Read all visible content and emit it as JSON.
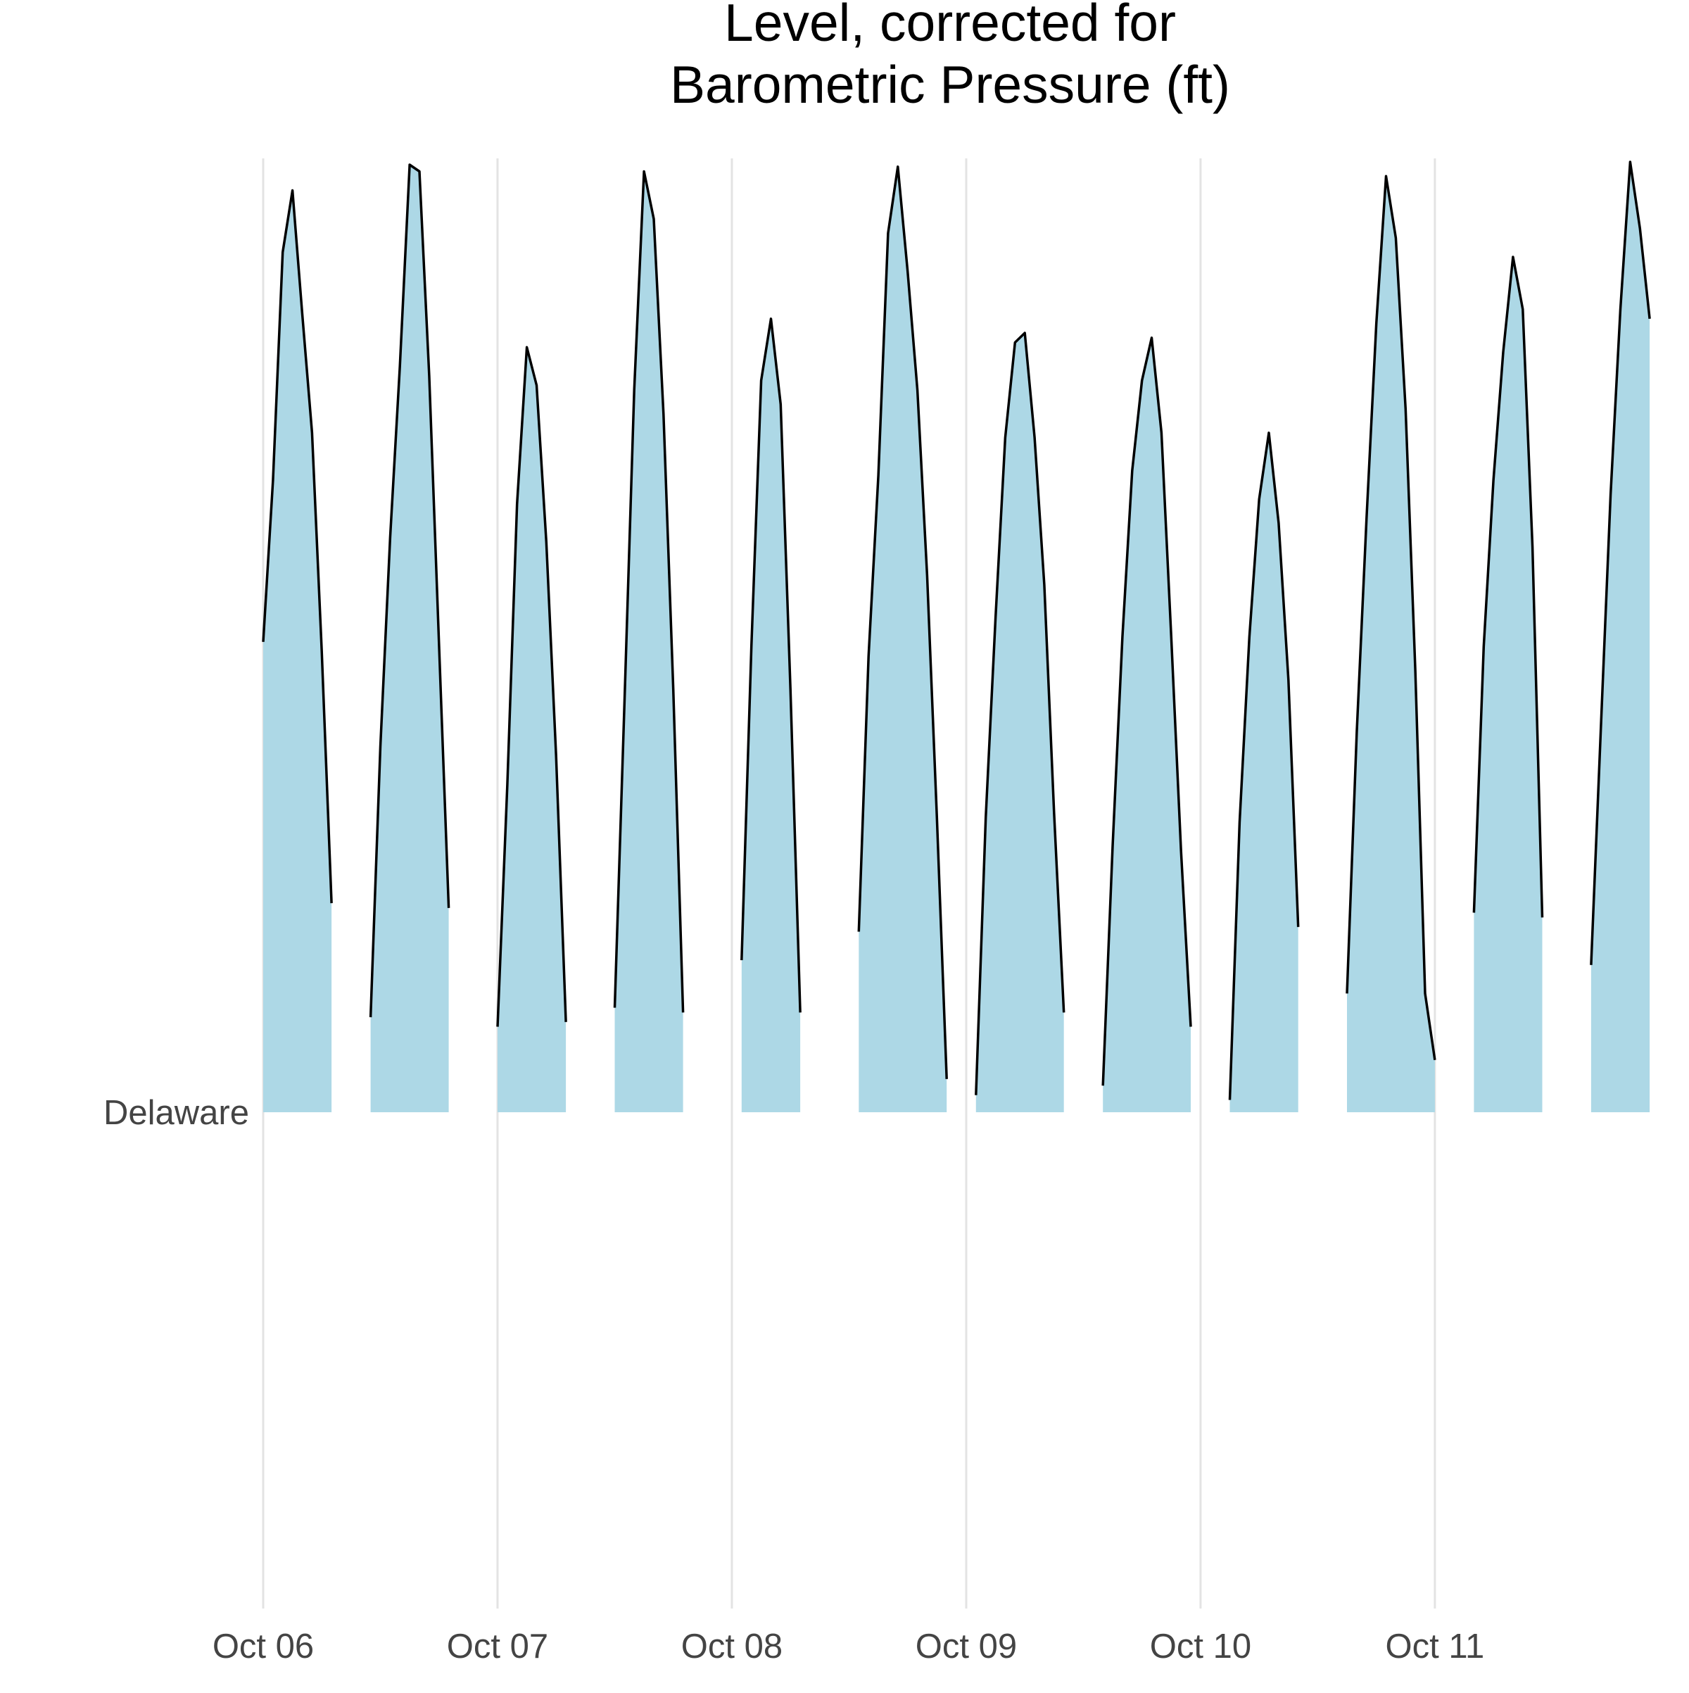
{
  "chart_data": {
    "type": "area",
    "title_lines": [
      "Level, corrected for",
      "Barometric Pressure (ft)"
    ],
    "xlabel": "",
    "ylabel": "",
    "x_ticks": [
      {
        "value": "2019-10-06",
        "label": "Oct 06"
      },
      {
        "value": "2019-10-07",
        "label": "Oct 07"
      },
      {
        "value": "2019-10-08",
        "label": "Oct 08"
      },
      {
        "value": "2019-10-09",
        "label": "Oct 09"
      },
      {
        "value": "2019-10-10",
        "label": "Oct 10"
      },
      {
        "value": "2019-10-11",
        "label": "Oct 11"
      }
    ],
    "xlim": [
      "2019-10-06T00:00",
      "2019-10-11T23:00"
    ],
    "y_categories": [
      "Delaware"
    ],
    "ridge_scale": [
      0,
      1
    ],
    "fill_color": "#add8e6",
    "line_color": "#000000",
    "grid": "vertical-major",
    "series": [
      {
        "name": "Delaware",
        "segments": [
          [
            {
              "x": "2019-10-06T00:00",
              "y": 0.495
            },
            {
              "x": "2019-10-06T01:00",
              "y": 0.665
            },
            {
              "x": "2019-10-06T02:00",
              "y": 0.905
            },
            {
              "x": "2019-10-06T03:00",
              "y": 0.97
            },
            {
              "x": "2019-10-06T04:00",
              "y": 0.84
            },
            {
              "x": "2019-10-06T05:00",
              "y": 0.715
            },
            {
              "x": "2019-10-06T06:00",
              "y": 0.485
            },
            {
              "x": "2019-10-06T07:00",
              "y": 0.22
            }
          ],
          [
            {
              "x": "2019-10-06T11:00",
              "y": 0.1
            },
            {
              "x": "2019-10-06T12:00",
              "y": 0.385
            },
            {
              "x": "2019-10-06T13:00",
              "y": 0.605
            },
            {
              "x": "2019-10-06T14:00",
              "y": 0.785
            },
            {
              "x": "2019-10-06T15:00",
              "y": 0.997
            },
            {
              "x": "2019-10-06T16:00",
              "y": 0.99
            },
            {
              "x": "2019-10-06T17:00",
              "y": 0.775
            },
            {
              "x": "2019-10-06T18:00",
              "y": 0.495
            },
            {
              "x": "2019-10-06T19:00",
              "y": 0.215
            }
          ],
          [
            {
              "x": "2019-10-07T00:00",
              "y": 0.09
            },
            {
              "x": "2019-10-07T01:00",
              "y": 0.345
            },
            {
              "x": "2019-10-07T02:00",
              "y": 0.64
            },
            {
              "x": "2019-10-07T03:00",
              "y": 0.805
            },
            {
              "x": "2019-10-07T04:00",
              "y": 0.765
            },
            {
              "x": "2019-10-07T05:00",
              "y": 0.6
            },
            {
              "x": "2019-10-07T06:00",
              "y": 0.375
            },
            {
              "x": "2019-10-07T07:00",
              "y": 0.095
            }
          ],
          [
            {
              "x": "2019-10-07T12:00",
              "y": 0.11
            },
            {
              "x": "2019-10-07T13:00",
              "y": 0.43
            },
            {
              "x": "2019-10-07T14:00",
              "y": 0.76
            },
            {
              "x": "2019-10-07T15:00",
              "y": 0.99
            },
            {
              "x": "2019-10-07T16:00",
              "y": 0.94
            },
            {
              "x": "2019-10-07T17:00",
              "y": 0.735
            },
            {
              "x": "2019-10-07T18:00",
              "y": 0.445
            },
            {
              "x": "2019-10-07T19:00",
              "y": 0.105
            }
          ],
          [
            {
              "x": "2019-10-08T01:00",
              "y": 0.16
            },
            {
              "x": "2019-10-08T02:00",
              "y": 0.49
            },
            {
              "x": "2019-10-08T03:00",
              "y": 0.77
            },
            {
              "x": "2019-10-08T04:00",
              "y": 0.835
            },
            {
              "x": "2019-10-08T05:00",
              "y": 0.745
            },
            {
              "x": "2019-10-08T06:00",
              "y": 0.445
            },
            {
              "x": "2019-10-08T07:00",
              "y": 0.105
            }
          ],
          [
            {
              "x": "2019-10-08T13:00",
              "y": 0.19
            },
            {
              "x": "2019-10-08T14:00",
              "y": 0.48
            },
            {
              "x": "2019-10-08T15:00",
              "y": 0.67
            },
            {
              "x": "2019-10-08T16:00",
              "y": 0.925
            },
            {
              "x": "2019-10-08T17:00",
              "y": 0.995
            },
            {
              "x": "2019-10-08T18:00",
              "y": 0.885
            },
            {
              "x": "2019-10-08T19:00",
              "y": 0.76
            },
            {
              "x": "2019-10-08T20:00",
              "y": 0.565
            },
            {
              "x": "2019-10-08T21:00",
              "y": 0.31
            },
            {
              "x": "2019-10-08T22:00",
              "y": 0.035
            }
          ],
          [
            {
              "x": "2019-10-09T01:00",
              "y": 0.018
            },
            {
              "x": "2019-10-09T02:00",
              "y": 0.31
            },
            {
              "x": "2019-10-09T03:00",
              "y": 0.52
            },
            {
              "x": "2019-10-09T04:00",
              "y": 0.71
            },
            {
              "x": "2019-10-09T05:00",
              "y": 0.81
            },
            {
              "x": "2019-10-09T06:00",
              "y": 0.82
            },
            {
              "x": "2019-10-09T07:00",
              "y": 0.71
            },
            {
              "x": "2019-10-09T08:00",
              "y": 0.555
            },
            {
              "x": "2019-10-09T09:00",
              "y": 0.315
            },
            {
              "x": "2019-10-09T10:00",
              "y": 0.105
            }
          ],
          [
            {
              "x": "2019-10-09T14:00",
              "y": 0.028
            },
            {
              "x": "2019-10-09T15:00",
              "y": 0.28
            },
            {
              "x": "2019-10-09T16:00",
              "y": 0.5
            },
            {
              "x": "2019-10-09T17:00",
              "y": 0.675
            },
            {
              "x": "2019-10-09T18:00",
              "y": 0.77
            },
            {
              "x": "2019-10-09T19:00",
              "y": 0.815
            },
            {
              "x": "2019-10-09T20:00",
              "y": 0.715
            },
            {
              "x": "2019-10-09T21:00",
              "y": 0.5
            },
            {
              "x": "2019-10-09T22:00",
              "y": 0.275
            },
            {
              "x": "2019-10-09T23:00",
              "y": 0.09
            }
          ],
          [
            {
              "x": "2019-10-10T03:00",
              "y": 0.013
            },
            {
              "x": "2019-10-10T04:00",
              "y": 0.305
            },
            {
              "x": "2019-10-10T05:00",
              "y": 0.5
            },
            {
              "x": "2019-10-10T06:00",
              "y": 0.645
            },
            {
              "x": "2019-10-10T07:00",
              "y": 0.715
            },
            {
              "x": "2019-10-10T08:00",
              "y": 0.62
            },
            {
              "x": "2019-10-10T09:00",
              "y": 0.455
            },
            {
              "x": "2019-10-10T10:00",
              "y": 0.195
            }
          ],
          [
            {
              "x": "2019-10-10T15:00",
              "y": 0.125
            },
            {
              "x": "2019-10-10T16:00",
              "y": 0.4
            },
            {
              "x": "2019-10-10T17:00",
              "y": 0.625
            },
            {
              "x": "2019-10-10T18:00",
              "y": 0.83
            },
            {
              "x": "2019-10-10T19:00",
              "y": 0.985
            },
            {
              "x": "2019-10-10T20:00",
              "y": 0.92
            },
            {
              "x": "2019-10-10T21:00",
              "y": 0.74
            },
            {
              "x": "2019-10-10T22:00",
              "y": 0.465
            },
            {
              "x": "2019-10-10T23:00",
              "y": 0.125
            },
            {
              "x": "2019-10-11T00:00",
              "y": 0.055
            }
          ],
          [
            {
              "x": "2019-10-11T04:00",
              "y": 0.21
            },
            {
              "x": "2019-10-11T05:00",
              "y": 0.49
            },
            {
              "x": "2019-10-11T06:00",
              "y": 0.665
            },
            {
              "x": "2019-10-11T07:00",
              "y": 0.8
            },
            {
              "x": "2019-10-11T08:00",
              "y": 0.9
            },
            {
              "x": "2019-10-11T09:00",
              "y": 0.845
            },
            {
              "x": "2019-10-11T10:00",
              "y": 0.595
            },
            {
              "x": "2019-10-11T11:00",
              "y": 0.205
            }
          ],
          [
            {
              "x": "2019-10-11T16:00",
              "y": 0.155
            },
            {
              "x": "2019-10-11T17:00",
              "y": 0.405
            },
            {
              "x": "2019-10-11T18:00",
              "y": 0.65
            },
            {
              "x": "2019-10-11T19:00",
              "y": 0.845
            },
            {
              "x": "2019-10-11T20:00",
              "y": 1.0
            },
            {
              "x": "2019-10-11T21:00",
              "y": 0.93
            },
            {
              "x": "2019-10-11T22:00",
              "y": 0.835
            }
          ]
        ]
      }
    ]
  }
}
